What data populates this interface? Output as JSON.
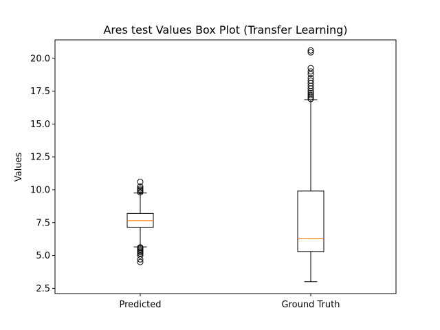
{
  "chart_data": {
    "type": "box",
    "title": "Ares test Values Box Plot (Transfer Learning)",
    "xlabel": "",
    "ylabel": "Values",
    "ylim": [
      2.1,
      21.4
    ],
    "yticks": [
      2.5,
      5.0,
      7.5,
      10.0,
      12.5,
      15.0,
      17.5,
      20.0
    ],
    "ytick_labels": [
      "2.5",
      "5.0",
      "7.5",
      "10.0",
      "12.5",
      "15.0",
      "17.5",
      "20.0"
    ],
    "grid": false,
    "categories": [
      "Predicted",
      "Ground Truth"
    ],
    "boxes": [
      {
        "name": "Predicted",
        "whisker_low": 5.65,
        "q1": 7.15,
        "median": 7.65,
        "q3": 8.2,
        "whisker_high": 9.75,
        "outliers": [
          4.5,
          4.7,
          5.0,
          5.15,
          5.25,
          5.35,
          5.45,
          5.55,
          5.62,
          9.8,
          9.9,
          10.0,
          10.1,
          10.25,
          10.6
        ]
      },
      {
        "name": "Ground Truth",
        "whisker_low": 3.0,
        "q1": 5.3,
        "median": 6.3,
        "q3": 9.9,
        "whisker_high": 16.85,
        "outliers": [
          16.9,
          17.05,
          17.2,
          17.35,
          17.5,
          17.7,
          17.9,
          18.1,
          18.3,
          18.5,
          18.8,
          19.0,
          19.25,
          20.45,
          20.6
        ]
      }
    ],
    "colors": {
      "box": "#000000",
      "median": "#ff7f0e",
      "outlier": "#000000"
    }
  }
}
